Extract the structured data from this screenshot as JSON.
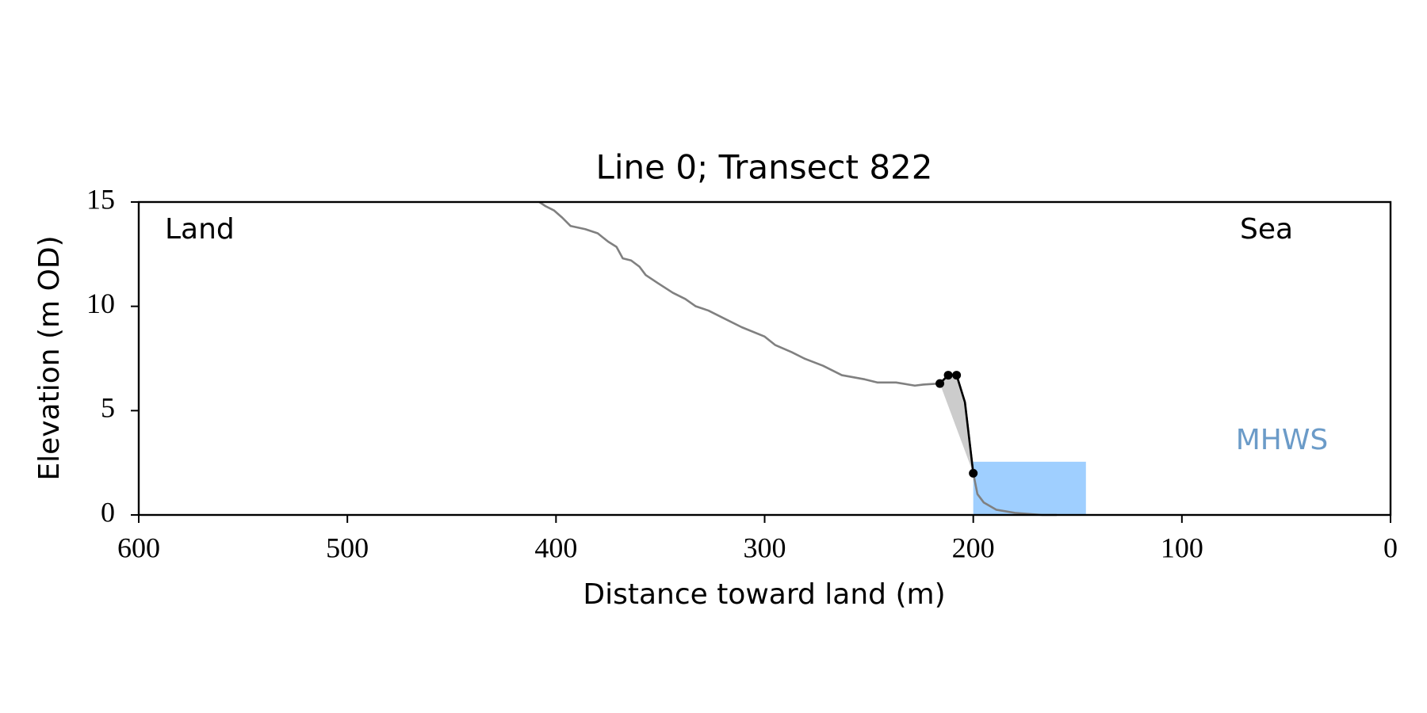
{
  "chart_data": {
    "type": "line",
    "title": "Line 0; Transect 822",
    "xlabel": "Distance toward land (m)",
    "ylabel": "Elevation (m OD)",
    "annotations": [
      {
        "text": "Land"
      },
      {
        "text": "Sea"
      }
    ],
    "xlim": [
      600,
      0
    ],
    "xticks": [
      600,
      500,
      400,
      300,
      200,
      100,
      0
    ],
    "ylim": [
      0,
      15
    ],
    "yticks": [
      0,
      5,
      10,
      15
    ],
    "mhws": {
      "label": "MHWS",
      "value": 2.55,
      "x_range": [
        200,
        146
      ],
      "color": "#9fcfff",
      "label_color": "#6b9bc8"
    },
    "series": [
      {
        "color": "#808080",
        "x": [
          408,
          405,
          401,
          397,
          393,
          386,
          380,
          375,
          371,
          368,
          364,
          360,
          357,
          351,
          344,
          338,
          333,
          327,
          320,
          311,
          300,
          295,
          287,
          281,
          272,
          263,
          252,
          246,
          237,
          228,
          224,
          216,
          212,
          208,
          204,
          200,
          198,
          195,
          189,
          180,
          167,
          160
        ],
        "values": [
          15.0,
          14.8,
          14.6,
          14.25,
          13.85,
          13.7,
          13.5,
          13.1,
          12.85,
          12.3,
          12.2,
          11.9,
          11.5,
          11.1,
          10.65,
          10.35,
          10.0,
          9.8,
          9.45,
          9.0,
          8.55,
          8.15,
          7.8,
          7.5,
          7.15,
          6.7,
          6.5,
          6.35,
          6.35,
          6.2,
          6.25,
          6.3,
          6.7,
          6.7,
          5.4,
          2.0,
          1.0,
          0.6,
          0.25,
          0.1,
          0.0,
          0.0
        ]
      },
      {
        "color": "#000000",
        "fill_color": "#cccccc",
        "x": [
          216,
          212,
          208,
          204,
          200
        ],
        "values": [
          6.3,
          6.7,
          6.7,
          5.4,
          2.0
        ]
      },
      {
        "color": "#000000",
        "markers": true,
        "x": [
          216,
          212,
          208,
          200
        ],
        "values": [
          6.3,
          6.7,
          6.7,
          2.0
        ]
      }
    ]
  }
}
